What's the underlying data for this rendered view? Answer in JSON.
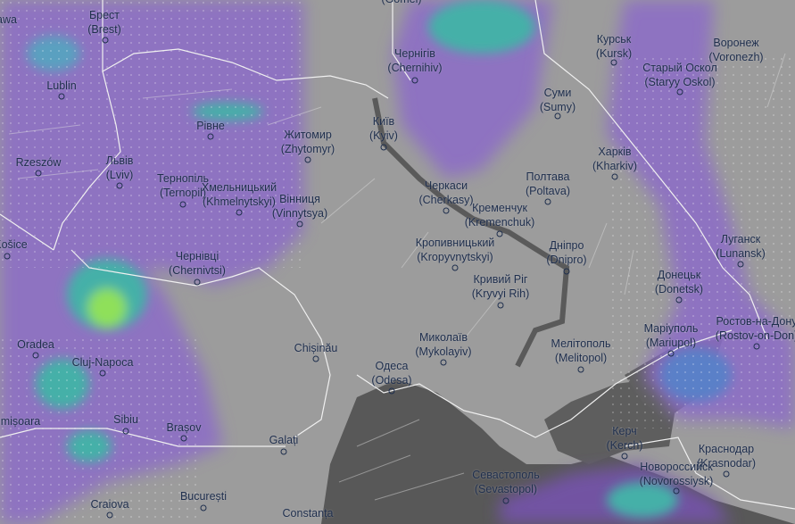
{
  "map": {
    "layer": "precipitation-and-wind",
    "colors": {
      "land": "#9c9c9c",
      "sea": "#585858",
      "rain_light": "#8a6cc4",
      "rain_mid": "#4aa3b0",
      "rain_heavy": "#7fdc5a",
      "border": "#f2f2f2",
      "label": "#1f2f4d"
    },
    "cities": [
      {
        "name": "Warszawa",
        "latin": ""
      },
      {
        "name": "Брест",
        "latin": "(Brest)"
      },
      {
        "name": "",
        "latin": "(Gomel)"
      },
      {
        "name": "Чернігів",
        "latin": "(Chernihiv)"
      },
      {
        "name": "Курськ",
        "latin": "(Kursk)"
      },
      {
        "name": "Воронеж",
        "latin": "(Voronezh)"
      },
      {
        "name": "Старый Оскол",
        "latin": "(Staryy Oskol)"
      },
      {
        "name": "Lublin",
        "latin": ""
      },
      {
        "name": "Суми",
        "latin": "(Sumy)"
      },
      {
        "name": "Рівне",
        "latin": ""
      },
      {
        "name": "Київ",
        "latin": "(Kyiv)"
      },
      {
        "name": "Житомир",
        "latin": "(Zhytomyr)"
      },
      {
        "name": "Харків",
        "latin": "(Kharkiv)"
      },
      {
        "name": "Rzeszów",
        "latin": ""
      },
      {
        "name": "Львів",
        "latin": "(Lviv)"
      },
      {
        "name": "Полтава",
        "latin": "(Poltava)"
      },
      {
        "name": "Тернопіль",
        "latin": "(Ternopil)"
      },
      {
        "name": "Хмельницький",
        "latin": "(Khmelnytskyi)"
      },
      {
        "name": "Вінниця",
        "latin": "(Vinnytsya)"
      },
      {
        "name": "Черкаси",
        "latin": "(Cherkasy)"
      },
      {
        "name": "Кременчук",
        "latin": "(Kremenchuk)"
      },
      {
        "name": "Луганск",
        "latin": "(Lunansk)"
      },
      {
        "name": "Košice",
        "latin": ""
      },
      {
        "name": "Кропивницький",
        "latin": "(Kropyvnytskyi)"
      },
      {
        "name": "Дніпро",
        "latin": "(Dnipro)"
      },
      {
        "name": "Чернівці",
        "latin": "(Chernivtsi)"
      },
      {
        "name": "Кривий Ріг",
        "latin": "(Kryvyi Rih)"
      },
      {
        "name": "Донецьк",
        "latin": "(Donetsk)"
      },
      {
        "name": "Маріуполь",
        "latin": "(Mariupol)"
      },
      {
        "name": "Ростов-на-Дону",
        "latin": "(Rostov-on-Don)"
      },
      {
        "name": "Oradea",
        "latin": ""
      },
      {
        "name": "Chișinău",
        "latin": ""
      },
      {
        "name": "Миколаїв",
        "latin": "(Mykolayiv)"
      },
      {
        "name": "Мелітополь",
        "latin": "(Melitopol)"
      },
      {
        "name": "Одеса",
        "latin": "(Odesa)"
      },
      {
        "name": "Cluj-Napoca",
        "latin": ""
      },
      {
        "name": "Sibiu",
        "latin": ""
      },
      {
        "name": "Brașov",
        "latin": ""
      },
      {
        "name": "Timișoara",
        "latin": ""
      },
      {
        "name": "Керч",
        "latin": "(Kerch)"
      },
      {
        "name": "Galați",
        "latin": ""
      },
      {
        "name": "Краснодар",
        "latin": "(Krasnodar)"
      },
      {
        "name": "Новороссийск",
        "latin": "(Novorossiysk)"
      },
      {
        "name": "Севастополь",
        "latin": "(Sevastopol)"
      },
      {
        "name": "Craiova",
        "latin": ""
      },
      {
        "name": "București",
        "latin": ""
      },
      {
        "name": "Constanța",
        "latin": ""
      }
    ]
  }
}
